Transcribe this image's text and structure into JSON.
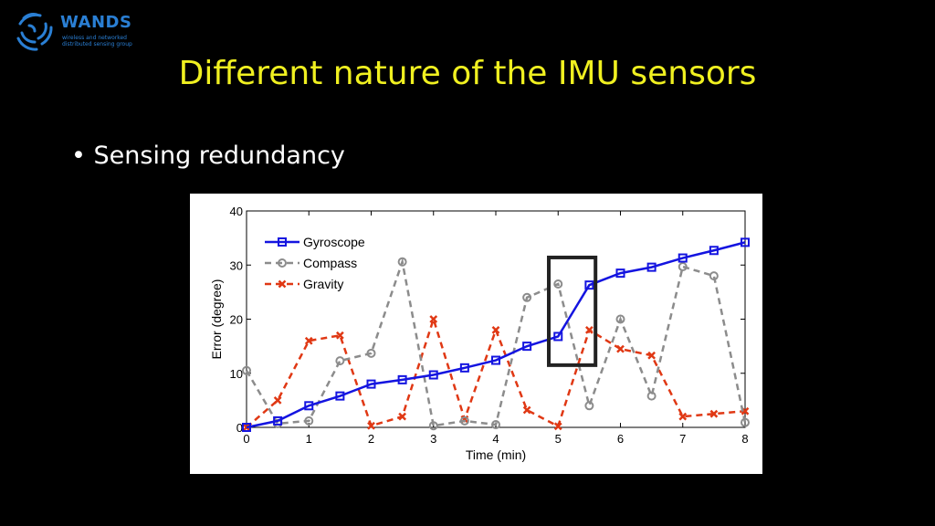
{
  "logo": {
    "name": "WANDS",
    "tagline_1": "wireless and networked",
    "tagline_2": "distributed sensing group"
  },
  "title": "Different nature of the IMU sensors",
  "bullet": "Sensing redundancy",
  "chart_data": {
    "type": "line",
    "xlabel": "Time (min)",
    "ylabel": "Error (degree)",
    "xlim": [
      0,
      8
    ],
    "ylim": [
      0,
      40
    ],
    "xticks": [
      0,
      1,
      2,
      3,
      4,
      5,
      6,
      7,
      8
    ],
    "yticks": [
      0,
      10,
      20,
      30,
      40
    ],
    "legend_position": "top-left",
    "x": [
      0,
      0.5,
      1,
      1.5,
      2,
      2.5,
      3,
      3.5,
      4,
      4.5,
      5,
      5.5,
      6,
      6.5,
      7,
      7.5,
      8
    ],
    "series": [
      {
        "name": "Gyroscope",
        "color": "#1414e0",
        "dash": "solid",
        "marker": "square",
        "values": [
          0,
          1.2,
          4,
          5.8,
          8,
          8.8,
          9.7,
          11,
          12.4,
          15,
          16.8,
          26.3,
          28.5,
          29.6,
          31.3,
          32.7,
          34.2
        ]
      },
      {
        "name": "Compass",
        "color": "#8c8c8c",
        "dash": "dashed",
        "marker": "circle",
        "values": [
          10.5,
          0.7,
          1.2,
          12.3,
          13.7,
          30.6,
          0.3,
          1.2,
          0.5,
          24,
          26.5,
          4,
          20,
          5.8,
          29.7,
          28,
          0.9
        ]
      },
      {
        "name": "Gravity",
        "color": "#e03814",
        "dash": "dashed",
        "marker": "x",
        "values": [
          0,
          5,
          16,
          17,
          0.3,
          2,
          20,
          1.5,
          18,
          3.2,
          0.2,
          18,
          14.5,
          13.3,
          2,
          2.5,
          3
        ]
      }
    ],
    "highlight_box": {
      "x_range": [
        4.85,
        5.6
      ],
      "y_range": [
        11.5,
        31.4
      ]
    }
  }
}
